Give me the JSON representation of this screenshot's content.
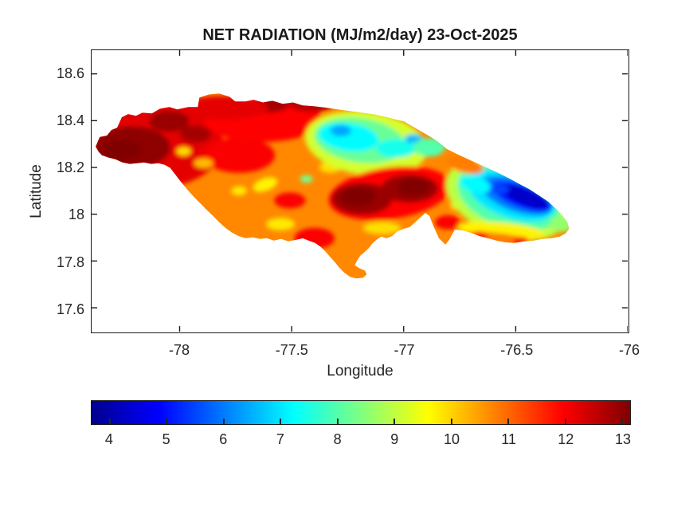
{
  "chart_data": {
    "type": "filled_contour_map",
    "title": "NET RADIATION (MJ/m2/day) 23-Oct-2025",
    "xlabel": "Longitude",
    "ylabel": "Latitude",
    "region_name": "Jamaica",
    "grid": false,
    "x_axis": {
      "range": [
        -78.393,
        -76.0
      ],
      "ticks": [
        [
          -78,
          "-78"
        ],
        [
          -77.5,
          "-77.5"
        ],
        [
          -77,
          "-77"
        ],
        [
          -76.5,
          "-76.5"
        ],
        [
          -76,
          "-76"
        ]
      ]
    },
    "y_axis": {
      "range": [
        17.498,
        18.701
      ],
      "ticks": [
        [
          18.6,
          "18.6"
        ],
        [
          18.4,
          "18.4"
        ],
        [
          18.2,
          "18.2"
        ],
        [
          18,
          "18"
        ],
        [
          17.8,
          "17.8"
        ],
        [
          17.6,
          "17.6"
        ]
      ]
    },
    "colorbar": {
      "orientation": "horizontal",
      "units": "MJ/m2/day",
      "range": [
        3.68,
        13.14
      ],
      "ticks": [
        [
          4,
          "4"
        ],
        [
          5,
          "5"
        ],
        [
          6,
          "6"
        ],
        [
          7,
          "7"
        ],
        [
          8,
          "8"
        ],
        [
          9,
          "9"
        ],
        [
          10,
          "10"
        ],
        [
          11,
          "11"
        ],
        [
          12,
          "12"
        ],
        [
          13,
          "13"
        ]
      ],
      "colormap": "jet",
      "stops": [
        [
          0,
          "#00008F"
        ],
        [
          0.125,
          "#0000FF"
        ],
        [
          0.375,
          "#00FFFF"
        ],
        [
          0.625,
          "#FFFF00"
        ],
        [
          0.875,
          "#FF0000"
        ],
        [
          1,
          "#800000"
        ]
      ]
    },
    "features": [
      "Highest net radiation (12-13 MJ/m2/day, dark red) over western parishes and the south-central interior",
      "Moderate values (7-9, green/cyan) over the north-central interior",
      "Lowest values (4-6, blue) over the eastern Blue Mountains region",
      "Orange background values of 10-11 along most coasts"
    ],
    "base_value": 10.7,
    "island_outline": [
      [
        -78.361,
        18.266
      ],
      [
        -78.375,
        18.289
      ],
      [
        -78.357,
        18.33
      ],
      [
        -78.325,
        18.336
      ],
      [
        -78.304,
        18.36
      ],
      [
        -78.279,
        18.37
      ],
      [
        -78.258,
        18.414
      ],
      [
        -78.23,
        18.428
      ],
      [
        -78.195,
        18.421
      ],
      [
        -78.166,
        18.434
      ],
      [
        -78.124,
        18.431
      ],
      [
        -78.088,
        18.451
      ],
      [
        -78.046,
        18.458
      ],
      [
        -78.011,
        18.448
      ],
      [
        -77.961,
        18.458
      ],
      [
        -77.919,
        18.458
      ],
      [
        -77.912,
        18.499
      ],
      [
        -77.869,
        18.512
      ],
      [
        -77.823,
        18.516
      ],
      [
        -77.777,
        18.502
      ],
      [
        -77.752,
        18.482
      ],
      [
        -77.706,
        18.482
      ],
      [
        -77.671,
        18.489
      ],
      [
        -77.628,
        18.478
      ],
      [
        -77.586,
        18.485
      ],
      [
        -77.54,
        18.472
      ],
      [
        -77.494,
        18.478
      ],
      [
        -77.451,
        18.465
      ],
      [
        -77.398,
        18.461
      ],
      [
        -77.345,
        18.455
      ],
      [
        -77.292,
        18.448
      ],
      [
        -77.239,
        18.441
      ],
      [
        -77.186,
        18.434
      ],
      [
        -77.14,
        18.428
      ],
      [
        -77.09,
        18.418
      ],
      [
        -77.044,
        18.407
      ],
      [
        -76.998,
        18.397
      ],
      [
        -76.963,
        18.377
      ],
      [
        -76.92,
        18.353
      ],
      [
        -76.878,
        18.33
      ],
      [
        -76.842,
        18.306
      ],
      [
        -76.807,
        18.279
      ],
      [
        -76.765,
        18.259
      ],
      [
        -76.719,
        18.238
      ],
      [
        -76.673,
        18.218
      ],
      [
        -76.627,
        18.198
      ],
      [
        -76.581,
        18.178
      ],
      [
        -76.531,
        18.154
      ],
      [
        -76.485,
        18.13
      ],
      [
        -76.439,
        18.107
      ],
      [
        -76.396,
        18.08
      ],
      [
        -76.354,
        18.053
      ],
      [
        -76.319,
        18.022
      ],
      [
        -76.29,
        17.992
      ],
      [
        -76.269,
        17.965
      ],
      [
        -76.262,
        17.938
      ],
      [
        -76.276,
        17.918
      ],
      [
        -76.304,
        17.904
      ],
      [
        -76.34,
        17.897
      ],
      [
        -76.379,
        17.894
      ],
      [
        -76.421,
        17.887
      ],
      [
        -76.464,
        17.884
      ],
      [
        -76.506,
        17.877
      ],
      [
        -76.545,
        17.88
      ],
      [
        -76.584,
        17.887
      ],
      [
        -76.623,
        17.897
      ],
      [
        -76.662,
        17.907
      ],
      [
        -76.701,
        17.921
      ],
      [
        -76.736,
        17.931
      ],
      [
        -76.772,
        17.934
      ],
      [
        -76.797,
        17.89
      ],
      [
        -76.814,
        17.87
      ],
      [
        -76.843,
        17.897
      ],
      [
        -76.867,
        17.948
      ],
      [
        -76.885,
        17.992
      ],
      [
        -76.903,
        18.005
      ],
      [
        -76.927,
        17.985
      ],
      [
        -76.949,
        17.965
      ],
      [
        -76.973,
        17.945
      ],
      [
        -76.998,
        17.938
      ],
      [
        -77.027,
        17.928
      ],
      [
        -77.051,
        17.907
      ],
      [
        -77.076,
        17.897
      ],
      [
        -77.101,
        17.904
      ],
      [
        -77.122,
        17.89
      ],
      [
        -77.14,
        17.874
      ],
      [
        -77.154,
        17.857
      ],
      [
        -77.172,
        17.84
      ],
      [
        -77.193,
        17.823
      ],
      [
        -77.207,
        17.803
      ],
      [
        -77.218,
        17.782
      ],
      [
        -77.196,
        17.769
      ],
      [
        -77.172,
        17.759
      ],
      [
        -77.165,
        17.742
      ],
      [
        -77.182,
        17.728
      ],
      [
        -77.211,
        17.725
      ],
      [
        -77.239,
        17.732
      ],
      [
        -77.264,
        17.749
      ],
      [
        -77.285,
        17.769
      ],
      [
        -77.306,
        17.793
      ],
      [
        -77.327,
        17.816
      ],
      [
        -77.349,
        17.84
      ],
      [
        -77.37,
        17.86
      ],
      [
        -77.395,
        17.877
      ],
      [
        -77.423,
        17.887
      ],
      [
        -77.451,
        17.897
      ],
      [
        -77.483,
        17.89
      ],
      [
        -77.515,
        17.884
      ],
      [
        -77.547,
        17.894
      ],
      [
        -77.579,
        17.887
      ],
      [
        -77.611,
        17.897
      ],
      [
        -77.642,
        17.894
      ],
      [
        -77.674,
        17.901
      ],
      [
        -77.706,
        17.897
      ],
      [
        -77.738,
        17.907
      ],
      [
        -77.766,
        17.921
      ],
      [
        -77.795,
        17.941
      ],
      [
        -77.823,
        17.965
      ],
      [
        -77.851,
        17.992
      ],
      [
        -77.88,
        18.019
      ],
      [
        -77.908,
        18.046
      ],
      [
        -77.936,
        18.073
      ],
      [
        -77.964,
        18.103
      ],
      [
        -77.993,
        18.137
      ],
      [
        -78.018,
        18.168
      ],
      [
        -78.042,
        18.198
      ],
      [
        -78.067,
        18.211
      ],
      [
        -78.095,
        18.218
      ],
      [
        -78.127,
        18.215
      ],
      [
        -78.159,
        18.221
      ],
      [
        -78.191,
        18.218
      ],
      [
        -78.223,
        18.215
      ],
      [
        -78.255,
        18.221
      ],
      [
        -78.287,
        18.235
      ],
      [
        -78.318,
        18.242
      ],
      [
        -78.347,
        18.252
      ]
    ],
    "anomalies": [
      {
        "lon": -78.106,
        "lat": 18.303,
        "rx": 0.3,
        "ry": 0.19,
        "rot": 0,
        "value": 12.2
      },
      {
        "lon": -78.212,
        "lat": 18.286,
        "rx": 0.17,
        "ry": 0.09,
        "rot": 0,
        "value": 13.0
      },
      {
        "lon": -78.258,
        "lat": 18.276,
        "rx": 0.085,
        "ry": 0.042,
        "rot": 0,
        "value": 13.2
      },
      {
        "lon": -78.046,
        "lat": 18.397,
        "rx": 0.09,
        "ry": 0.045,
        "rot": 0,
        "value": 12.9
      },
      {
        "lon": -77.929,
        "lat": 18.343,
        "rx": 0.07,
        "ry": 0.037,
        "rot": 0,
        "value": 12.8
      },
      {
        "lon": -77.834,
        "lat": 18.431,
        "rx": 0.085,
        "ry": 0.037,
        "rot": 0,
        "value": 12.9
      },
      {
        "lon": -77.628,
        "lat": 18.404,
        "rx": 0.265,
        "ry": 0.095,
        "rot": 0,
        "value": 11.9
      },
      {
        "lon": -77.611,
        "lat": 18.468,
        "rx": 0.1,
        "ry": 0.034,
        "rot": 0,
        "value": 12.8
      },
      {
        "lon": -77.409,
        "lat": 18.471,
        "rx": 0.105,
        "ry": 0.034,
        "rot": 0,
        "value": 12.6
      },
      {
        "lon": -77.735,
        "lat": 18.252,
        "rx": 0.16,
        "ry": 0.075,
        "rot": 0,
        "value": 12.0
      },
      {
        "lon": -77.982,
        "lat": 18.269,
        "rx": 0.032,
        "ry": 0.018,
        "rot": 0,
        "value": 9.9
      },
      {
        "lon": -77.894,
        "lat": 18.218,
        "rx": 0.042,
        "ry": 0.02,
        "rot": 0,
        "value": 10.2
      },
      {
        "lon": -77.806,
        "lat": 18.455,
        "rx": 0.2,
        "ry": 0.05,
        "rot": 0,
        "value": 12.2
      },
      {
        "lon": -77.735,
        "lat": 18.1,
        "rx": 0.035,
        "ry": 0.02,
        "rot": 0,
        "value": 9.8
      },
      {
        "lon": -77.618,
        "lat": 18.127,
        "rx": 0.057,
        "ry": 0.027,
        "rot": -20,
        "value": 9.7
      },
      {
        "lon": -77.55,
        "lat": 17.958,
        "rx": 0.064,
        "ry": 0.027,
        "rot": 0,
        "value": 9.8
      },
      {
        "lon": -77.508,
        "lat": 18.059,
        "rx": 0.07,
        "ry": 0.034,
        "rot": 0,
        "value": 12.0
      },
      {
        "lon": -77.398,
        "lat": 17.897,
        "rx": 0.09,
        "ry": 0.045,
        "rot": 0,
        "value": 12.0
      },
      {
        "lon": -77.434,
        "lat": 18.151,
        "rx": 0.028,
        "ry": 0.017,
        "rot": 0,
        "value": 8.3
      },
      {
        "lon": -77.327,
        "lat": 18.201,
        "rx": 0.05,
        "ry": 0.024,
        "rot": 0,
        "value": 9.9
      },
      {
        "lon": -77.168,
        "lat": 18.303,
        "rx": 0.275,
        "ry": 0.135,
        "rot": 8,
        "value": 9.2
      },
      {
        "lon": -77.196,
        "lat": 18.316,
        "rx": 0.205,
        "ry": 0.095,
        "rot": 8,
        "value": 8.2
      },
      {
        "lon": -77.246,
        "lat": 18.33,
        "rx": 0.135,
        "ry": 0.06,
        "rot": 8,
        "value": 7.2
      },
      {
        "lon": -77.281,
        "lat": 18.357,
        "rx": 0.046,
        "ry": 0.024,
        "rot": 0,
        "value": 6.4
      },
      {
        "lon": -77.034,
        "lat": 18.282,
        "rx": 0.09,
        "ry": 0.04,
        "rot": 0,
        "value": 7.4
      },
      {
        "lon": -76.956,
        "lat": 18.323,
        "rx": 0.04,
        "ry": 0.02,
        "rot": 0,
        "value": 6.6
      },
      {
        "lon": -76.885,
        "lat": 18.286,
        "rx": 0.07,
        "ry": 0.04,
        "rot": 0,
        "value": 8.0
      },
      {
        "lon": -77.062,
        "lat": 18.09,
        "rx": 0.275,
        "ry": 0.11,
        "rot": -8,
        "value": 11.9
      },
      {
        "lon": -77.186,
        "lat": 18.066,
        "rx": 0.135,
        "ry": 0.068,
        "rot": 0,
        "value": 12.9
      },
      {
        "lon": -77.204,
        "lat": 18.076,
        "rx": 0.078,
        "ry": 0.04,
        "rot": 0,
        "value": 13.2
      },
      {
        "lon": -76.973,
        "lat": 18.11,
        "rx": 0.127,
        "ry": 0.06,
        "rot": 0,
        "value": 12.9
      },
      {
        "lon": -76.956,
        "lat": 18.117,
        "rx": 0.07,
        "ry": 0.037,
        "rot": 0,
        "value": 13.2
      },
      {
        "lon": -77.097,
        "lat": 17.941,
        "rx": 0.085,
        "ry": 0.027,
        "rot": 0,
        "value": 9.9
      },
      {
        "lon": -76.803,
        "lat": 17.965,
        "rx": 0.057,
        "ry": 0.03,
        "rot": 0,
        "value": 12.0
      },
      {
        "lon": -76.75,
        "lat": 18.039,
        "rx": 0.042,
        "ry": 0.024,
        "rot": 0,
        "value": 9.8
      },
      {
        "lon": -76.538,
        "lat": 18.066,
        "rx": 0.285,
        "ry": 0.16,
        "rot": 20,
        "value": 9.0
      },
      {
        "lon": -76.531,
        "lat": 18.073,
        "rx": 0.24,
        "ry": 0.13,
        "rot": 20,
        "value": 8.0
      },
      {
        "lon": -76.52,
        "lat": 18.08,
        "rx": 0.205,
        "ry": 0.095,
        "rot": 20,
        "value": 7.0
      },
      {
        "lon": -76.496,
        "lat": 18.08,
        "rx": 0.17,
        "ry": 0.068,
        "rot": 20,
        "value": 6.0
      },
      {
        "lon": -76.474,
        "lat": 18.076,
        "rx": 0.14,
        "ry": 0.047,
        "rot": 21,
        "value": 5.0
      },
      {
        "lon": -76.453,
        "lat": 18.073,
        "rx": 0.105,
        "ry": 0.034,
        "rot": 22,
        "value": 4.3
      },
      {
        "lon": -76.573,
        "lat": 18.107,
        "rx": 0.042,
        "ry": 0.02,
        "rot": 0,
        "value": 5.5
      },
      {
        "lon": -76.68,
        "lat": 18.127,
        "rx": 0.07,
        "ry": 0.034,
        "rot": 15,
        "value": 7.2
      },
      {
        "lon": -76.566,
        "lat": 17.931,
        "rx": 0.195,
        "ry": 0.034,
        "rot": 5,
        "value": 9.7
      },
      {
        "lon": -76.595,
        "lat": 17.894,
        "rx": 0.16,
        "ry": 0.027,
        "rot": 5,
        "value": 10.8
      },
      {
        "lon": -76.665,
        "lat": 17.907,
        "rx": 0.042,
        "ry": 0.02,
        "rot": 0,
        "value": 11.9
      },
      {
        "lon": -76.478,
        "lat": 17.887,
        "rx": 0.035,
        "ry": 0.017,
        "rot": 0,
        "value": 11.9
      },
      {
        "lon": -76.726,
        "lat": 18.211,
        "rx": 0.085,
        "ry": 0.034,
        "rot": 15,
        "value": 10.8
      },
      {
        "lon": -76.297,
        "lat": 17.958,
        "rx": 0.05,
        "ry": 0.034,
        "rot": 0,
        "value": 8.6
      }
    ]
  }
}
